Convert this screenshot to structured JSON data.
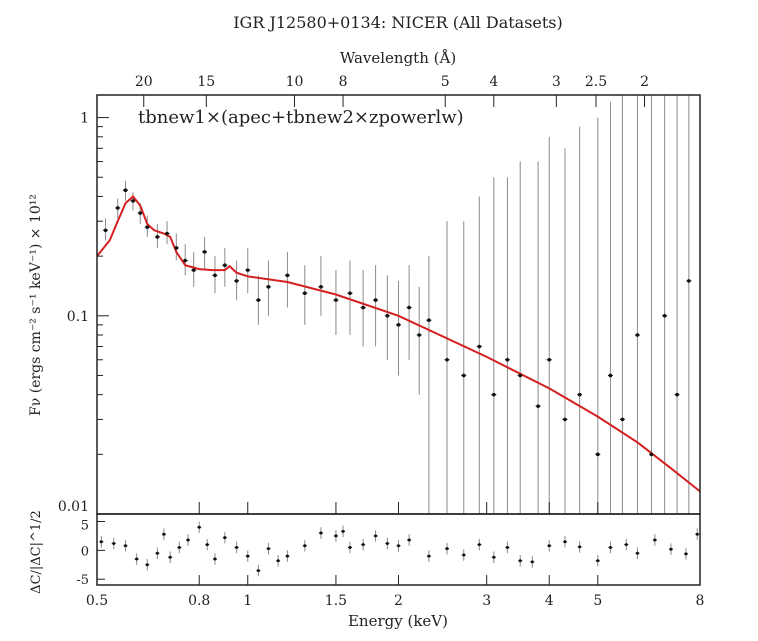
{
  "chart_data": {
    "type": "scatter",
    "title": "IGR J12580+0134: NICER (All Datasets)",
    "top_axis_label": "Wavelength (Å)",
    "top_ticks": [
      20,
      15,
      10,
      8,
      5,
      4,
      3,
      2.5,
      2
    ],
    "model_label": "tbnew1×(apec+tbnew2×zpowerlw)",
    "xlabel": "Energy (keV)",
    "ylabel": "Fν (ergs cm⁻² s⁻¹ keV⁻¹) × 10¹²",
    "resid_ylabel": "ΔC/|ΔC|^1/2",
    "x_scale": "log",
    "y_scale": "log",
    "xlim": [
      0.5,
      8
    ],
    "ylim": [
      0.01,
      1.3
    ],
    "resid_ylim": [
      -6,
      6.3
    ],
    "x_ticks": [
      0.5,
      0.8,
      1,
      1.5,
      2,
      3,
      4,
      5,
      8
    ],
    "y_ticks": [
      0.01,
      0.1,
      1
    ],
    "resid_ticks": [
      5,
      0,
      -5
    ],
    "colors": {
      "model": "#d42020",
      "data": "#111111",
      "errorbar": "#8a8a8a"
    },
    "model": [
      [
        0.5,
        0.2
      ],
      [
        0.53,
        0.24
      ],
      [
        0.55,
        0.3
      ],
      [
        0.57,
        0.37
      ],
      [
        0.59,
        0.4
      ],
      [
        0.61,
        0.36
      ],
      [
        0.63,
        0.29
      ],
      [
        0.65,
        0.27
      ],
      [
        0.68,
        0.26
      ],
      [
        0.7,
        0.25
      ],
      [
        0.72,
        0.21
      ],
      [
        0.75,
        0.18
      ],
      [
        0.8,
        0.172
      ],
      [
        0.85,
        0.17
      ],
      [
        0.9,
        0.17
      ],
      [
        0.92,
        0.178
      ],
      [
        0.95,
        0.165
      ],
      [
        1.0,
        0.158
      ],
      [
        1.2,
        0.148
      ],
      [
        1.5,
        0.128
      ],
      [
        2.0,
        0.1
      ],
      [
        3.0,
        0.062
      ],
      [
        4.0,
        0.043
      ],
      [
        5.0,
        0.031
      ],
      [
        6.0,
        0.023
      ],
      [
        7.0,
        0.017
      ],
      [
        8.0,
        0.013
      ]
    ],
    "data": [
      [
        0.52,
        0.27,
        0.24,
        0.31
      ],
      [
        0.55,
        0.35,
        0.31,
        0.39
      ],
      [
        0.57,
        0.43,
        0.38,
        0.48
      ],
      [
        0.59,
        0.38,
        0.34,
        0.42
      ],
      [
        0.61,
        0.33,
        0.29,
        0.37
      ],
      [
        0.63,
        0.28,
        0.25,
        0.32
      ],
      [
        0.66,
        0.25,
        0.22,
        0.29
      ],
      [
        0.69,
        0.26,
        0.23,
        0.3
      ],
      [
        0.72,
        0.22,
        0.19,
        0.26
      ],
      [
        0.75,
        0.19,
        0.16,
        0.23
      ],
      [
        0.78,
        0.17,
        0.14,
        0.21
      ],
      [
        0.82,
        0.21,
        0.17,
        0.25
      ],
      [
        0.86,
        0.16,
        0.13,
        0.2
      ],
      [
        0.9,
        0.18,
        0.14,
        0.22
      ],
      [
        0.95,
        0.15,
        0.12,
        0.19
      ],
      [
        1.0,
        0.17,
        0.13,
        0.22
      ],
      [
        1.05,
        0.12,
        0.09,
        0.16
      ],
      [
        1.1,
        0.14,
        0.1,
        0.19
      ],
      [
        1.2,
        0.16,
        0.11,
        0.21
      ],
      [
        1.3,
        0.13,
        0.09,
        0.18
      ],
      [
        1.4,
        0.14,
        0.1,
        0.2
      ],
      [
        1.5,
        0.12,
        0.08,
        0.17
      ],
      [
        1.6,
        0.13,
        0.08,
        0.19
      ],
      [
        1.7,
        0.11,
        0.07,
        0.17
      ],
      [
        1.8,
        0.12,
        0.07,
        0.18
      ],
      [
        1.9,
        0.1,
        0.06,
        0.16
      ],
      [
        2.0,
        0.09,
        0.05,
        0.15
      ],
      [
        2.1,
        0.11,
        0.06,
        0.18
      ],
      [
        2.2,
        0.08,
        0.04,
        0.14
      ],
      [
        2.3,
        0.095,
        0.01,
        0.2
      ],
      [
        2.5,
        0.06,
        0.01,
        0.3
      ],
      [
        2.7,
        0.05,
        0.01,
        0.3
      ],
      [
        2.9,
        0.07,
        0.01,
        0.4
      ],
      [
        3.1,
        0.04,
        0.01,
        0.5
      ],
      [
        3.3,
        0.06,
        0.01,
        0.5
      ],
      [
        3.5,
        0.05,
        0.01,
        0.6
      ],
      [
        3.8,
        0.035,
        0.01,
        0.6
      ],
      [
        4.0,
        0.06,
        0.01,
        0.8
      ],
      [
        4.3,
        0.03,
        0.01,
        0.7
      ],
      [
        4.6,
        0.04,
        0.01,
        0.9
      ],
      [
        5.0,
        0.02,
        0.01,
        1.0
      ],
      [
        5.3,
        0.05,
        0.01,
        1.2
      ],
      [
        5.6,
        0.03,
        0.01,
        1.3
      ],
      [
        6.0,
        0.08,
        0.01,
        1.3
      ],
      [
        6.4,
        0.02,
        0.01,
        1.3
      ],
      [
        6.8,
        0.1,
        0.01,
        1.3
      ],
      [
        7.2,
        0.04,
        0.01,
        1.3
      ],
      [
        7.6,
        0.15,
        0.01,
        1.3
      ]
    ],
    "residuals": [
      [
        0.51,
        1.5
      ],
      [
        0.54,
        1.2
      ],
      [
        0.57,
        0.8
      ],
      [
        0.6,
        -1.5
      ],
      [
        0.63,
        -2.5
      ],
      [
        0.66,
        -0.5
      ],
      [
        0.68,
        2.8
      ],
      [
        0.7,
        -1.2
      ],
      [
        0.73,
        0.5
      ],
      [
        0.76,
        1.8
      ],
      [
        0.8,
        4.0
      ],
      [
        0.83,
        1.0
      ],
      [
        0.86,
        -1.5
      ],
      [
        0.9,
        2.2
      ],
      [
        0.95,
        0.5
      ],
      [
        1.0,
        -1.0
      ],
      [
        1.05,
        -3.5
      ],
      [
        1.1,
        0.3
      ],
      [
        1.15,
        -1.8
      ],
      [
        1.2,
        -1.0
      ],
      [
        1.3,
        0.8
      ],
      [
        1.4,
        3.0
      ],
      [
        1.5,
        2.5
      ],
      [
        1.55,
        3.3
      ],
      [
        1.6,
        0.5
      ],
      [
        1.7,
        1.0
      ],
      [
        1.8,
        2.5
      ],
      [
        1.9,
        1.2
      ],
      [
        2.0,
        0.8
      ],
      [
        2.1,
        1.8
      ],
      [
        2.3,
        -1.0
      ],
      [
        2.5,
        0.3
      ],
      [
        2.7,
        -0.8
      ],
      [
        2.9,
        1.0
      ],
      [
        3.1,
        -1.2
      ],
      [
        3.3,
        0.5
      ],
      [
        3.5,
        -1.8
      ],
      [
        3.7,
        -2.0
      ],
      [
        4.0,
        0.8
      ],
      [
        4.3,
        1.5
      ],
      [
        4.6,
        0.6
      ],
      [
        5.0,
        -1.8
      ],
      [
        5.3,
        0.5
      ],
      [
        5.7,
        1.0
      ],
      [
        6.0,
        -0.5
      ],
      [
        6.5,
        1.8
      ],
      [
        7.0,
        0.2
      ],
      [
        7.5,
        -0.6
      ],
      [
        7.9,
        2.8
      ]
    ]
  }
}
